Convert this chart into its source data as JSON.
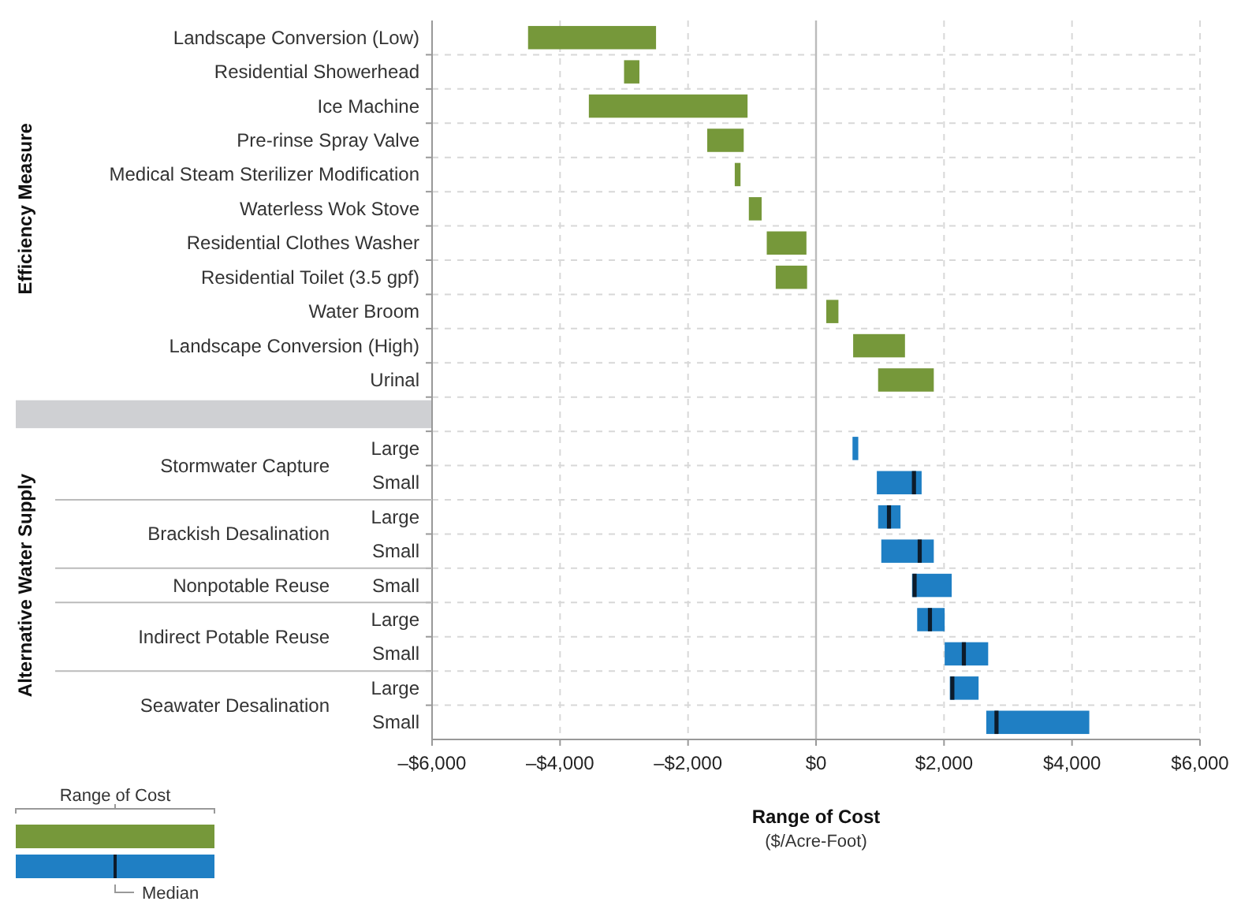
{
  "chart_data": {
    "type": "bar",
    "orientation": "horizontal",
    "xlabel": "Range of Cost",
    "legend_title": "Range of Cost",
    "grid": true,
    "categories": [
      "Landscape Conversion (Low)",
      "Residential Showerhead",
      "Ice Machine",
      "Pre-rinse Spray Valve",
      "Medical Steam Sterilizer Modification",
      "Waterless Wok Stove",
      "Residential Clothes Washer",
      "Residential Toilet (3.5 gpf)",
      "Water Broom",
      "Landscape Conversion (High)",
      "Urinal",
      null,
      "Large",
      "Small",
      "Large",
      "Small",
      "Small",
      "Large",
      "Small",
      "Large",
      "Small"
    ],
    "series": [
      {
        "type": "bar",
        "color": "#76983a",
        "base": [
          -4500,
          -3000,
          -3550,
          -1700,
          -1270,
          -1050,
          -770,
          -630,
          160,
          580,
          970,
          null,
          null,
          null,
          null,
          null,
          null,
          null,
          null,
          null,
          null
        ],
        "values": [
          2000,
          240,
          2480,
          570,
          90,
          200,
          620,
          490,
          190,
          810,
          870,
          null,
          null,
          null,
          null,
          null,
          null,
          null,
          null,
          null,
          null
        ]
      },
      {
        "type": "box",
        "color": "#1f7fc4",
        "boxes": [
          null,
          null,
          null,
          null,
          null,
          null,
          null,
          null,
          null,
          null,
          null,
          null,
          {
            "low": 570,
            "q1": 570,
            "median": null,
            "q3": 660,
            "high": 660
          },
          {
            "low": 950,
            "q1": 950,
            "median": 1530,
            "q3": 1650,
            "high": 1650
          },
          {
            "low": 970,
            "q1": 970,
            "median": 1140,
            "q3": 1320,
            "high": 1320
          },
          {
            "low": 1020,
            "q1": 1020,
            "median": 1620,
            "q3": 1840,
            "high": 1840
          },
          {
            "low": 1500,
            "q1": 1500,
            "median": 1540,
            "q3": 2120,
            "high": 2120
          },
          {
            "low": 1580,
            "q1": 1580,
            "median": 1780,
            "q3": 2010,
            "high": 2010
          },
          {
            "low": 2010,
            "q1": 2010,
            "median": 2310,
            "q3": 2690,
            "high": 2690
          },
          {
            "low": 2090,
            "q1": 2090,
            "median": 2130,
            "q3": 2540,
            "high": 2540
          },
          {
            "low": 2660,
            "q1": 2660,
            "median": 2820,
            "q3": 4270,
            "high": 4270
          }
        ]
      }
    ],
    "xlim": [
      -6000,
      6000
    ],
    "xticks": [
      {
        "value": -6000,
        "label": "–$6,000"
      },
      {
        "value": -4000,
        "label": "–$4,000"
      },
      {
        "value": -2000,
        "label": "–$2,000"
      },
      {
        "value": 0,
        "label": "$0"
      },
      {
        "value": 2000,
        "label": "$2,000"
      },
      {
        "value": 4000,
        "label": "$4,000"
      },
      {
        "value": 6000,
        "label": "$6,000"
      }
    ],
    "ref_lines": [
      {
        "axis": "x",
        "value": 0,
        "color": "#bbbbbb"
      }
    ],
    "annotations": [
      "($/Acre-Foot)",
      "Efficiency Measure",
      "Alternative Water Supply",
      "Stormwater Capture",
      "Brackish Desalination",
      "Nonpotable Reuse",
      "Indirect Potable Reuse",
      "Seawater Desalination",
      "Median"
    ]
  }
}
